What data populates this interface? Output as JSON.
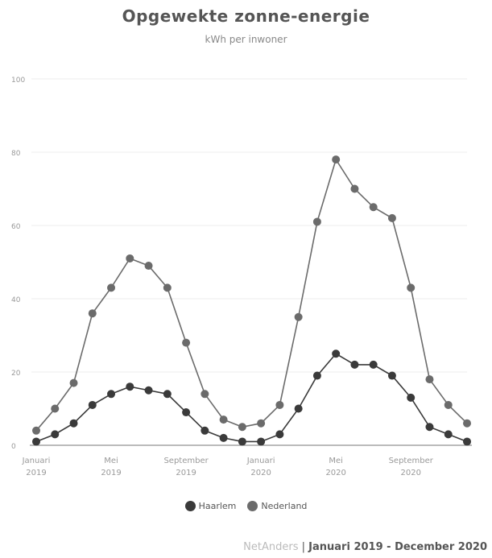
{
  "header": {
    "title": "Opgewekte zonne-energie",
    "subtitle": "kWh per inwoner"
  },
  "footer": {
    "brand": "NetAnders",
    "separator": "|",
    "period": "Januari 2019 - December 2020"
  },
  "chart_data": {
    "type": "line",
    "title": "Opgewekte zonne-energie",
    "subtitle": "kWh per inwoner",
    "xlabel": "",
    "ylabel": "",
    "ylim": [
      0,
      100
    ],
    "yticks": [
      0,
      20,
      40,
      60,
      80,
      100
    ],
    "grid": true,
    "legend_position": "bottom",
    "x": [
      "2019-01",
      "2019-02",
      "2019-03",
      "2019-04",
      "2019-05",
      "2019-06",
      "2019-07",
      "2019-08",
      "2019-09",
      "2019-10",
      "2019-11",
      "2019-12",
      "2020-01",
      "2020-02",
      "2020-03",
      "2020-04",
      "2020-05",
      "2020-06",
      "2020-07",
      "2020-08",
      "2020-09",
      "2020-10",
      "2020-11",
      "2020-12"
    ],
    "xtick_labels": [
      {
        "index": 0,
        "line1": "Januari",
        "line2": "2019"
      },
      {
        "index": 4,
        "line1": "Mei",
        "line2": "2019"
      },
      {
        "index": 8,
        "line1": "September",
        "line2": "2019"
      },
      {
        "index": 12,
        "line1": "Januari",
        "line2": "2020"
      },
      {
        "index": 16,
        "line1": "Mei",
        "line2": "2020"
      },
      {
        "index": 20,
        "line1": "September",
        "line2": "2020"
      }
    ],
    "series": [
      {
        "name": "Haarlem",
        "color": "#3a3a3a",
        "values": [
          1,
          3,
          6,
          11,
          14,
          16,
          15,
          14,
          9,
          4,
          2,
          1,
          1,
          3,
          10,
          19,
          25,
          22,
          22,
          19,
          13,
          5,
          3,
          1
        ]
      },
      {
        "name": "Nederland",
        "color": "#6b6b6b",
        "values": [
          4,
          10,
          17,
          36,
          43,
          51,
          49,
          43,
          28,
          14,
          7,
          5,
          6,
          11,
          35,
          61,
          78,
          70,
          65,
          62,
          43,
          18,
          11,
          6
        ]
      }
    ]
  }
}
